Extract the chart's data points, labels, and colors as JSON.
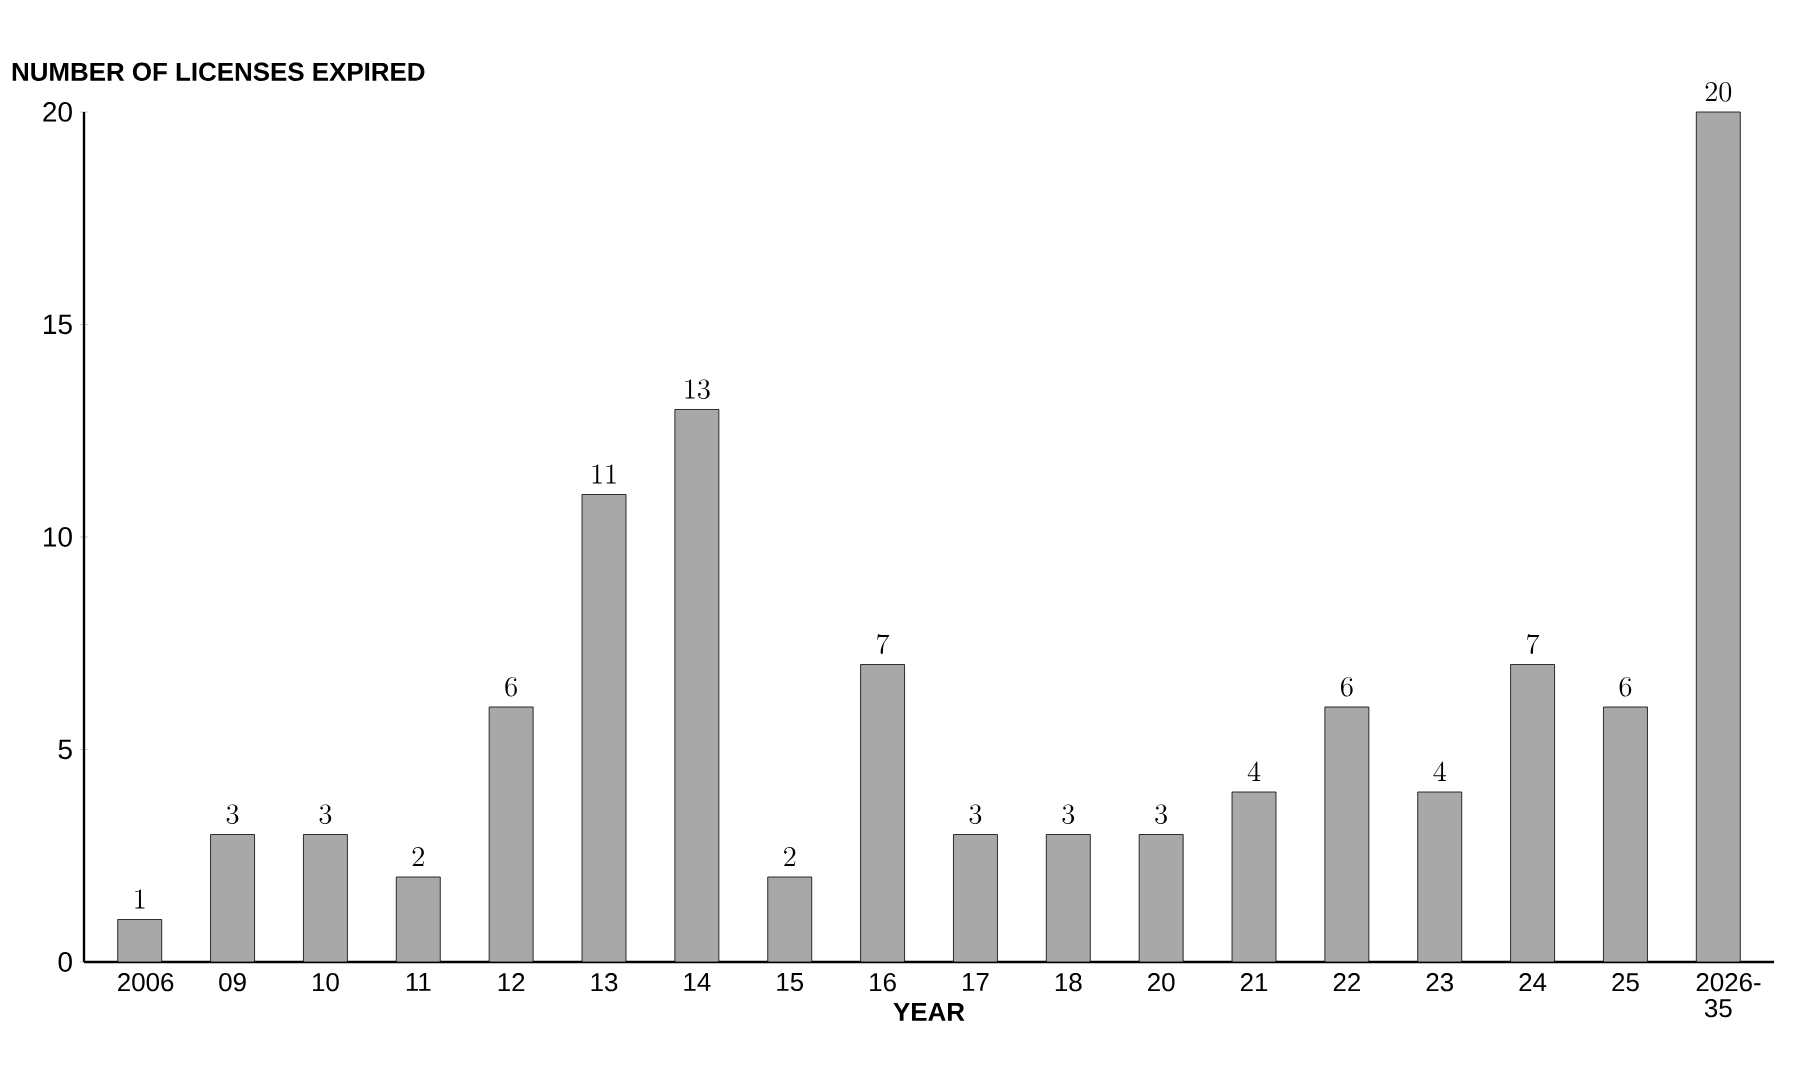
{
  "chart_data": {
    "type": "bar",
    "xlabel": "YEAR",
    "ylabel": "NUMBER OF LICENSES EXPIRED",
    "categories": [
      "2006",
      "09",
      "10",
      "11",
      "12",
      "13",
      "14",
      "15",
      "16",
      "17",
      "18",
      "20",
      "21",
      "22",
      "23",
      "24",
      "25",
      "2026-35"
    ],
    "values": [
      1,
      3,
      3,
      2,
      6,
      11,
      13,
      2,
      7,
      3,
      3,
      3,
      4,
      6,
      4,
      7,
      6,
      20
    ],
    "color": "#a8a8a8",
    "ylim": [
      0,
      20
    ],
    "yticks": [
      0,
      5,
      10,
      15,
      20
    ],
    "data_labels": true
  }
}
